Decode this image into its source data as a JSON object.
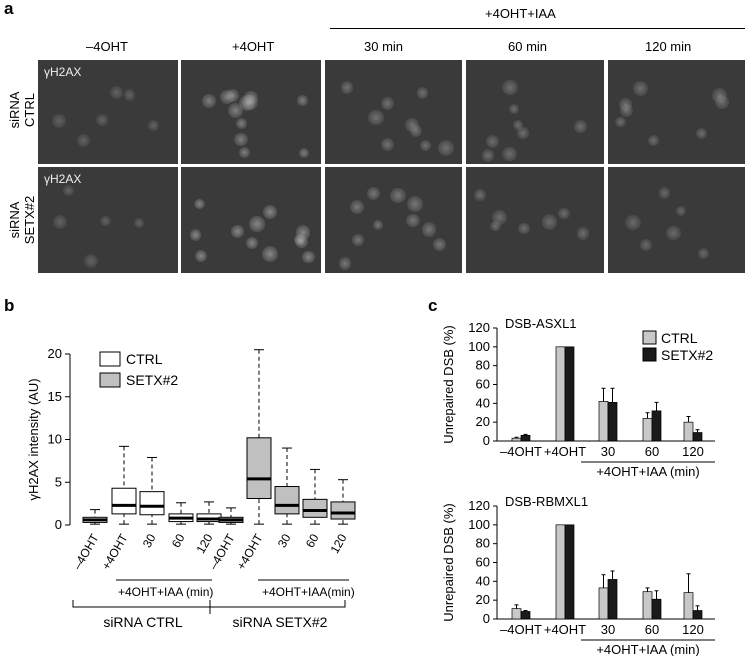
{
  "panel_a": {
    "letter": "a",
    "group_header": "+4OHT+IAA",
    "columns": [
      "–4OHT",
      "+4OHT",
      "30 min",
      "60 min",
      "120 min"
    ],
    "rows": [
      {
        "label_line1": "siRNA",
        "label_line2": "CTRL",
        "tag": "γH2AX"
      },
      {
        "label_line1": "siRNA",
        "label_line2": "SETX#2",
        "tag": "γH2AX"
      }
    ]
  },
  "panel_b": {
    "letter": "b",
    "legend": [
      "CTRL",
      "SETX#2"
    ],
    "group_labels": [
      "siRNA CTRL",
      "siRNA SETX#2"
    ],
    "treatment_label": "+4OHT+IAA (min)",
    "treatment_label_2": "+4OHT+IAA(min)"
  },
  "panel_c": {
    "letter": "c",
    "legend": [
      "CTRL",
      "SETX#2"
    ],
    "treatment_label": "+4OHT+IAA (min)"
  },
  "colors": {
    "ctrl": "#ffffff",
    "setx": "#c0c0c0",
    "ctrl_bar": "#c8c8c8",
    "setx_bar": "#1a1a1a",
    "micro_bg": "#3a3a3a"
  },
  "chart_data": [
    {
      "type": "box",
      "panel": "b",
      "title": "",
      "ylabel": "γH2AX intensity (AU)",
      "ylim": [
        0,
        20
      ],
      "yticks": [
        0,
        5,
        10,
        15,
        20
      ],
      "categories": [
        "–4OHT",
        "+4OHT",
        "30",
        "60",
        "120",
        "–4OHT",
        "+4OHT",
        "30",
        "60",
        "120"
      ],
      "series": [
        {
          "name": "CTRL",
          "boxes": [
            {
              "min": 0.1,
              "q1": 0.3,
              "median": 0.6,
              "q3": 0.9,
              "max": 1.8
            },
            {
              "min": 0.1,
              "q1": 1.3,
              "median": 2.3,
              "q3": 4.3,
              "max": 9.2
            },
            {
              "min": 0.1,
              "q1": 1.2,
              "median": 2.2,
              "q3": 3.9,
              "max": 7.9
            },
            {
              "min": 0.1,
              "q1": 0.4,
              "median": 0.8,
              "q3": 1.3,
              "max": 2.6
            },
            {
              "min": 0.1,
              "q1": 0.4,
              "median": 0.7,
              "q3": 1.3,
              "max": 2.7
            }
          ]
        },
        {
          "name": "SETX#2",
          "boxes": [
            {
              "min": 0.1,
              "q1": 0.3,
              "median": 0.6,
              "q3": 0.9,
              "max": 2.0
            },
            {
              "min": 0.1,
              "q1": 3.1,
              "median": 5.4,
              "q3": 10.2,
              "max": 20.5
            },
            {
              "min": 0.1,
              "q1": 1.3,
              "median": 2.3,
              "q3": 4.5,
              "max": 9.0
            },
            {
              "min": 0.1,
              "q1": 0.9,
              "median": 1.7,
              "q3": 3.0,
              "max": 6.5
            },
            {
              "min": 0.1,
              "q1": 0.7,
              "median": 1.4,
              "q3": 2.7,
              "max": 5.3
            }
          ]
        }
      ]
    },
    {
      "type": "bar",
      "panel": "c-top",
      "title": "DSB-ASXL1",
      "ylabel": "Unrepaired DSB (%)",
      "ylim": [
        0,
        120
      ],
      "yticks": [
        0,
        20,
        40,
        60,
        80,
        100,
        120
      ],
      "categories": [
        "–4OHT",
        "+4OHT",
        "30",
        "60",
        "120"
      ],
      "series": [
        {
          "name": "CTRL",
          "values": [
            3,
            100,
            42,
            24,
            20
          ],
          "errors": [
            1,
            0,
            14,
            6,
            6
          ]
        },
        {
          "name": "SETX#2",
          "values": [
            6,
            100,
            41,
            32,
            9
          ],
          "errors": [
            1,
            0,
            15,
            9,
            3
          ]
        }
      ]
    },
    {
      "type": "bar",
      "panel": "c-bottom",
      "title": "DSB-RBMXL1",
      "ylabel": "Unrepaired DSB (%)",
      "ylim": [
        0,
        120
      ],
      "yticks": [
        0,
        20,
        40,
        60,
        80,
        100,
        120
      ],
      "categories": [
        "–4OHT",
        "+4OHT",
        "30",
        "60",
        "120"
      ],
      "series": [
        {
          "name": "CTRL",
          "values": [
            11,
            100,
            33,
            29,
            28
          ],
          "errors": [
            4,
            0,
            14,
            4,
            20
          ]
        },
        {
          "name": "SETX#2",
          "values": [
            8,
            100,
            42,
            21,
            9
          ],
          "errors": [
            1,
            0,
            9,
            9,
            5
          ]
        }
      ]
    }
  ]
}
